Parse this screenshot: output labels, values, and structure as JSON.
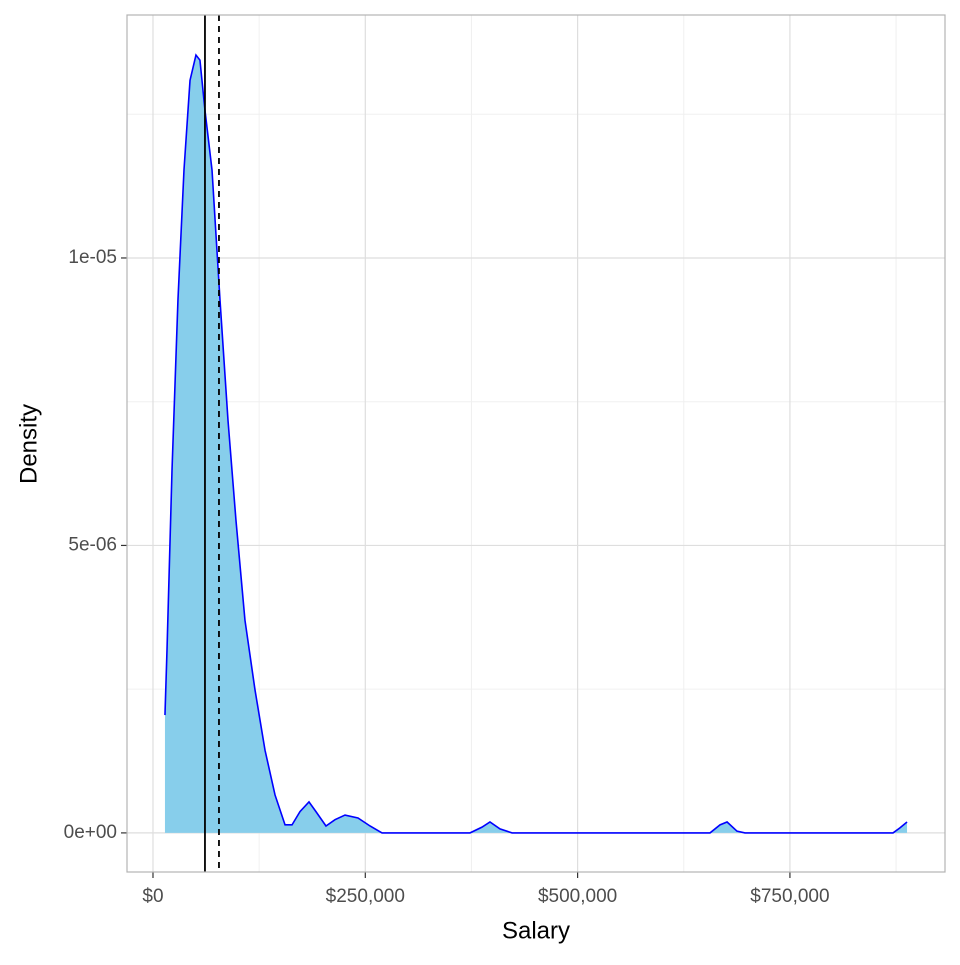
{
  "chart_data": {
    "type": "density",
    "x_label": "Salary",
    "y_label": "Density",
    "x": [
      14100,
      16500,
      22400,
      29400,
      36500,
      43600,
      50600,
      55300,
      61200,
      69500,
      78900,
      88300,
      97700,
      108300,
      120100,
      131900,
      143700,
      155500,
      163700,
      173100,
      183700,
      191900,
      203700,
      214300,
      226100,
      241400,
      255600,
      269700,
      373300,
      387400,
      396800,
      408600,
      422800,
      655900,
      667700,
      676000,
      687700,
      697100,
      871400,
      879700,
      887900
    ],
    "values": [
      2.05e-06,
      3.18e-06,
      6.31e-06,
      9.27e-06,
      1.153e-05,
      1.309e-05,
      1.353e-05,
      1.344e-05,
      1.257e-05,
      1.153e-05,
      9.27e-06,
      7.18e-06,
      5.44e-06,
      3.7e-06,
      2.49e-06,
      1.44e-06,
      6.6e-07,
      1.4e-07,
      1.4e-07,
      3.7e-07,
      5.4e-07,
      3.7e-07,
      1.2e-07,
      2.3e-07,
      3.1e-07,
      2.6e-07,
      1.2e-07,
      0,
      0,
      1e-07,
      1.9e-07,
      7e-08,
      0,
      0,
      1.4e-07,
      1.9e-07,
      3e-08,
      0,
      0,
      9e-08,
      1.9e-07
    ],
    "fill": "#87ceeb",
    "color": "#0000ff",
    "vlines": [
      {
        "value": 61200,
        "dashed": false
      },
      {
        "value": 77700,
        "dashed": true
      }
    ],
    "xlim": [
      -30600,
      932600
    ],
    "ylim": [
      -6.8e-07,
      1.4226e-05
    ],
    "xticks": [
      {
        "value": 0,
        "label": "$0"
      },
      {
        "value": 250000,
        "label": "$250,000"
      },
      {
        "value": 500000,
        "label": "$500,000"
      },
      {
        "value": 750000,
        "label": "$750,000"
      }
    ],
    "yticks": [
      {
        "value": 0,
        "label": "0e+00"
      },
      {
        "value": 5e-06,
        "label": "5e-06"
      },
      {
        "value": 1e-05,
        "label": "1e-05"
      }
    ],
    "xminor": [
      125000,
      375000,
      625000,
      875000
    ],
    "yminor": [
      2.5e-06,
      7.5e-06,
      1.25e-05
    ],
    "grid": true
  }
}
